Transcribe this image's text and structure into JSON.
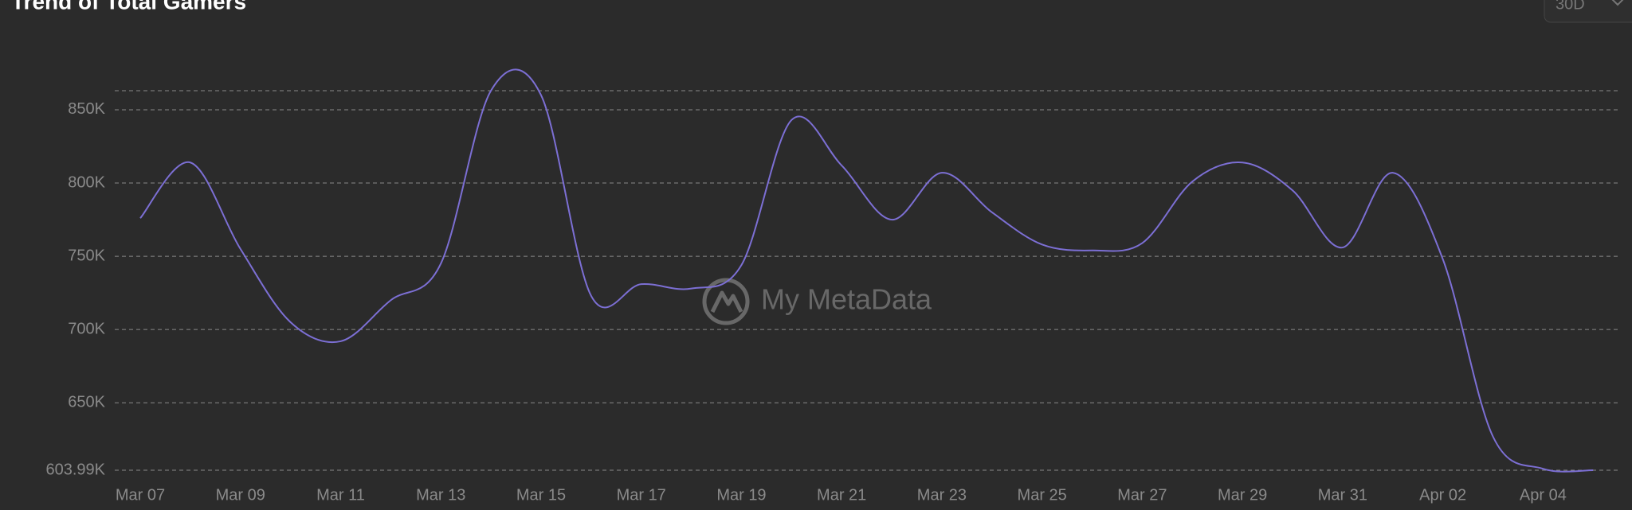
{
  "chart_data": {
    "type": "line",
    "title": "Trend of Total Gamers",
    "range_selector": "30D",
    "watermark": "My MetaData",
    "categories": [
      "Mar 07",
      null,
      "Mar 09",
      null,
      "Mar 11",
      null,
      "Mar 13",
      null,
      "Mar 15",
      null,
      "Mar 17",
      null,
      "Mar 19",
      null,
      "Mar 21",
      null,
      "Mar 23",
      null,
      "Mar 25",
      null,
      "Mar 27",
      null,
      "Mar 29",
      null,
      "Mar 31",
      null,
      "Apr 02",
      null,
      "Apr 04",
      null
    ],
    "series": [
      {
        "name": "Total Gamers",
        "color": "#7c6fd4",
        "values": [
          776000,
          814000,
          755000,
          705000,
          692000,
          720000,
          745000,
          863000,
          860000,
          723000,
          731000,
          728000,
          744000,
          843000,
          812000,
          775000,
          807000,
          780000,
          758000,
          754000,
          759000,
          801000,
          814000,
          795000,
          756000,
          807000,
          748000,
          627000,
          605000,
          604000
        ]
      }
    ],
    "ylim": [
      603990,
      863000
    ],
    "yticks": [
      {
        "value": 603990,
        "label": "603.99K"
      },
      {
        "value": 650000,
        "label": "650K"
      },
      {
        "value": 700000,
        "label": "700K"
      },
      {
        "value": 750000,
        "label": "750K"
      },
      {
        "value": 800000,
        "label": "800K"
      },
      {
        "value": 850000,
        "label": "850K"
      }
    ],
    "grid": true
  }
}
